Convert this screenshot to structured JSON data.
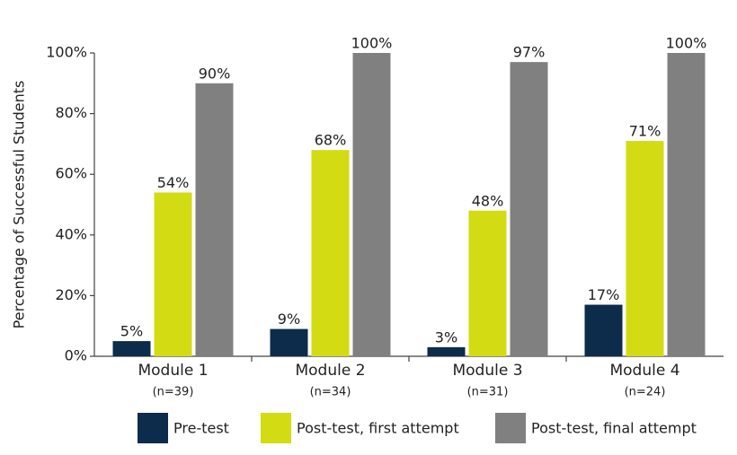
{
  "chart_data": {
    "type": "bar",
    "y_label": "Percentage of Successful Students",
    "categories": [
      "Module 1",
      "Module 2",
      "Module 3",
      "Module 4"
    ],
    "category_notes": [
      "(n=39)",
      "(n=34)",
      "(n=31)",
      "(n=24)"
    ],
    "series": [
      {
        "name": "Pre-test",
        "color": "#0d2b4b",
        "values": [
          5,
          9,
          3,
          17
        ],
        "value_labels": [
          "5%",
          "9%",
          "3%",
          "17%"
        ]
      },
      {
        "name": "Post-test, first attempt",
        "color": "#d3db13",
        "values": [
          54,
          68,
          48,
          71
        ],
        "value_labels": [
          "54%",
          "68%",
          "48%",
          "71%"
        ]
      },
      {
        "name": "Post-test, final attempt",
        "color": "#808080",
        "values": [
          90,
          100,
          97,
          100
        ],
        "value_labels": [
          "90%",
          "100%",
          "97%",
          "100%"
        ]
      }
    ],
    "ylim": [
      0,
      100
    ],
    "yticks": [
      {
        "value": 0,
        "label": "0%"
      },
      {
        "value": 20,
        "label": "20%"
      },
      {
        "value": 40,
        "label": "40%"
      },
      {
        "value": 60,
        "label": "60%"
      },
      {
        "value": 80,
        "label": "80%"
      },
      {
        "value": 100,
        "label": "100%"
      }
    ],
    "grid": false
  }
}
